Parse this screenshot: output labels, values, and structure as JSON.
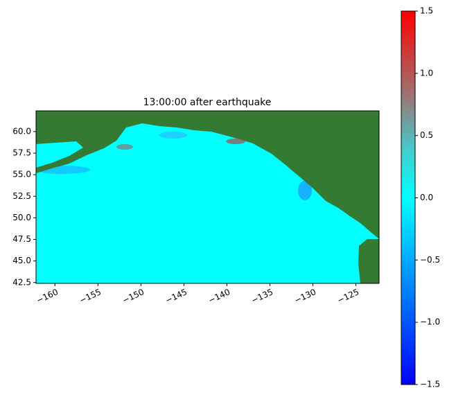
{
  "chart_data": {
    "type": "heatmap",
    "title": "13:00:00 after earthquake",
    "xlim": [
      -162.2,
      -122.3
    ],
    "ylim": [
      42.4,
      62.4
    ],
    "xticks": [
      {
        "value": -160,
        "label": "−160"
      },
      {
        "value": -155,
        "label": "−155"
      },
      {
        "value": -150,
        "label": "−150"
      },
      {
        "value": -145,
        "label": "−145"
      },
      {
        "value": -140,
        "label": "−140"
      },
      {
        "value": -135,
        "label": "−135"
      },
      {
        "value": -130,
        "label": "−130"
      },
      {
        "value": -125,
        "label": "−125"
      }
    ],
    "yticks": [
      {
        "value": 42.5,
        "label": "42.5"
      },
      {
        "value": 45,
        "label": "45.0"
      },
      47.5,
      {
        "value": 50,
        "label": "50.0"
      },
      52.5,
      {
        "value": 55,
        "label": "55.0"
      },
      57.5,
      {
        "value": 60,
        "label": "60.0"
      }
    ],
    "colorbar": {
      "lim": [
        -1.5,
        1.5
      ],
      "ticks": [
        {
          "value": -1.5,
          "label": "−1.5"
        },
        {
          "value": -1,
          "label": "−1.0"
        },
        {
          "value": -0.5,
          "label": "−0.5"
        },
        {
          "value": 0,
          "label": "0.0"
        },
        0.5,
        {
          "value": 1,
          "label": "1.0"
        },
        1.5
      ]
    }
  }
}
